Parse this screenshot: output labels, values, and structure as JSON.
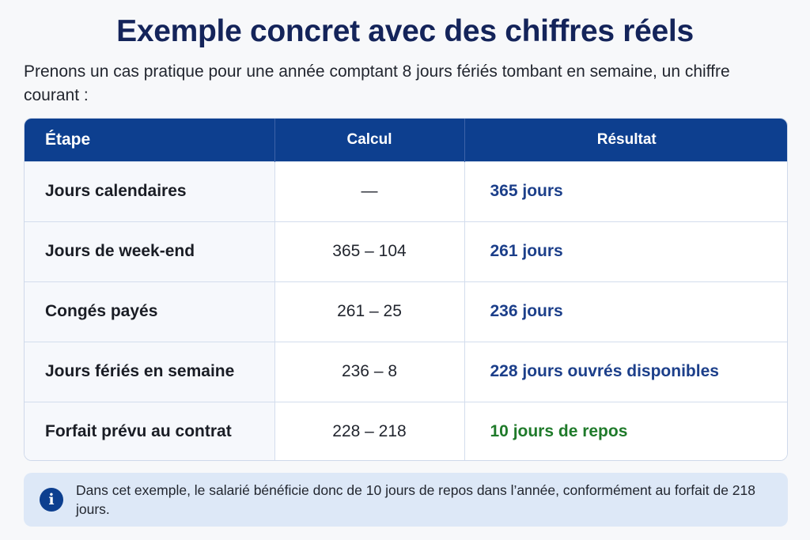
{
  "title": "Exemple concret avec des chiffres réels",
  "intro": "Prenons un cas pratique pour une année comptant 8 jours fériés tombant en semaine, un chiffre courant :",
  "table": {
    "headers": {
      "step": "Étape",
      "calc": "Calcul",
      "result": "Résultat"
    },
    "rows": [
      {
        "step": "Jours calendaires",
        "calc": "—",
        "result": "365 jours"
      },
      {
        "step": "Jours de week-end",
        "calc": "365 – 104",
        "result": "261 jours"
      },
      {
        "step": "Congés payés",
        "calc": "261 – 25",
        "result": "236 jours"
      },
      {
        "step": "Jours fériés en semaine",
        "calc": "236 – 8",
        "result": "228 jours ouvrés disponibles"
      },
      {
        "step": "Forfait prévu au contrat",
        "calc": "228 – 218",
        "result": "10 jours de repos"
      }
    ]
  },
  "note": {
    "icon": "info-icon",
    "icon_glyph": "i",
    "text": "Dans cet exemple, le salarié bénéficie donc de 10 jours de repos dans l’année, conformément au forfait de 218 jours."
  },
  "colors": {
    "title": "#14245a",
    "header_bg": "#0d3f8f",
    "result_blue": "#1c3f8a",
    "result_green": "#1f7a2a",
    "note_bg": "#dde8f7"
  }
}
